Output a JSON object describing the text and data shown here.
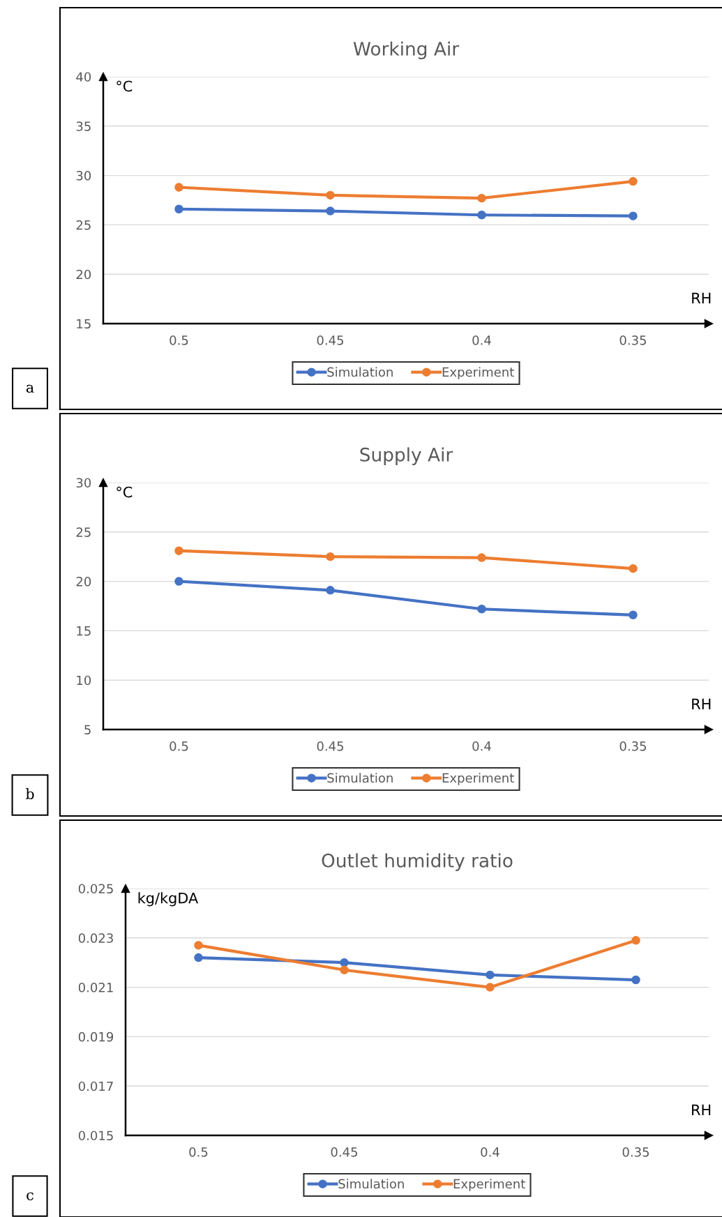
{
  "chart_data": [
    {
      "type": "line",
      "title": "Working Air",
      "xlabel": "RH",
      "ylabel": "°C",
      "categories": [
        "0.5",
        "0.45",
        "0.4",
        "0.35"
      ],
      "ylim": [
        15,
        40
      ],
      "yticks": [
        15,
        20,
        25,
        30,
        35,
        40
      ],
      "grid": "y",
      "legend": "bottom",
      "marker": "circle",
      "line_style": "solid",
      "annotations": [
        "a"
      ],
      "series": [
        {
          "name": "Simulation",
          "color": "#4472c4",
          "values": [
            26.6,
            26.4,
            26.0,
            25.9
          ]
        },
        {
          "name": "Experiment",
          "color": "#ed7d31",
          "values": [
            28.8,
            28.0,
            27.7,
            29.4
          ]
        }
      ]
    },
    {
      "type": "line",
      "title": "Supply Air",
      "xlabel": "RH",
      "ylabel": "°C",
      "categories": [
        "0.5",
        "0.45",
        "0.4",
        "0.35"
      ],
      "ylim": [
        5,
        30
      ],
      "yticks": [
        5,
        10,
        15,
        20,
        25,
        30
      ],
      "grid": "y",
      "legend": "bottom",
      "marker": "circle",
      "line_style": "solid",
      "annotations": [
        "b"
      ],
      "series": [
        {
          "name": "Simulation",
          "color": "#4472c4",
          "values": [
            20.0,
            19.1,
            17.2,
            16.6
          ]
        },
        {
          "name": "Experiment",
          "color": "#ed7d31",
          "values": [
            23.1,
            22.5,
            22.4,
            21.3
          ]
        }
      ]
    },
    {
      "type": "line",
      "title": "Outlet humidity ratio",
      "xlabel": "RH",
      "ylabel": "kg/kgDA",
      "categories": [
        "0.5",
        "0.45",
        "0.4",
        "0.35"
      ],
      "ylim": [
        0.015,
        0.025
      ],
      "yticks": [
        {
          "value": 0.015,
          "label": "0.015"
        },
        {
          "value": 0.017,
          "label": "0.017"
        },
        {
          "value": 0.019,
          "label": "0.019"
        },
        {
          "value": 0.021,
          "label": "0.021"
        },
        {
          "value": 0.023,
          "label": "0.023"
        },
        {
          "value": 0.025,
          "label": "0.025"
        }
      ],
      "grid": "y",
      "legend": "bottom",
      "marker": "circle",
      "line_style": "solid",
      "annotations": [
        "c"
      ],
      "series": [
        {
          "name": "Simulation",
          "color": "#4472c4",
          "values": [
            0.0222,
            0.022,
            0.0215,
            0.0213
          ]
        },
        {
          "name": "Experiment",
          "color": "#ed7d31",
          "values": [
            0.0227,
            0.0217,
            0.021,
            0.0229
          ]
        }
      ]
    }
  ]
}
